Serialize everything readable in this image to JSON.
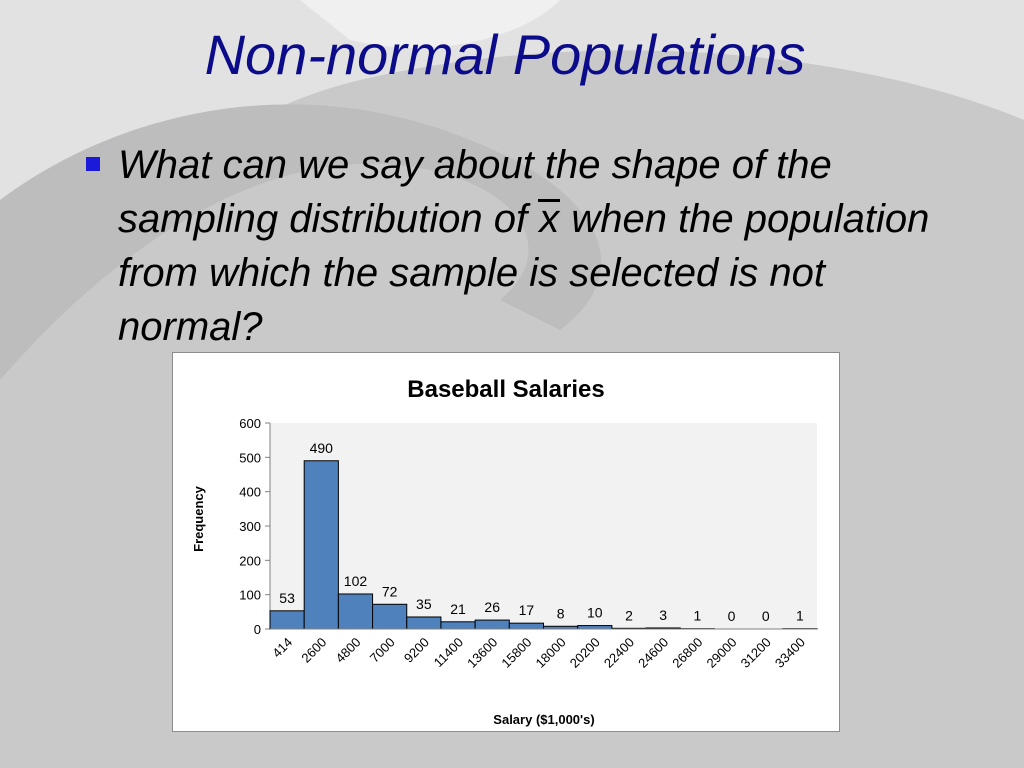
{
  "slide": {
    "title": "Non-normal Populations",
    "bullet_before": "What can we say about the shape of the sampling distribution of ",
    "bullet_symbol": "x",
    "bullet_after": " when the population from which the sample is selected is not normal?",
    "title_color": "#0c0c8a",
    "bullet_color": "#1a1ad8"
  },
  "chart_data": {
    "type": "bar",
    "title": "Baseball Salaries",
    "xlabel": "Salary ($1,000's)",
    "ylabel": "Frequency",
    "categories": [
      "414",
      "2600",
      "4800",
      "7000",
      "9200",
      "11400",
      "13600",
      "15800",
      "18000",
      "20200",
      "22400",
      "24600",
      "26800",
      "29000",
      "31200",
      "33400"
    ],
    "values": [
      53,
      490,
      102,
      72,
      35,
      21,
      26,
      17,
      8,
      10,
      2,
      3,
      1,
      0,
      0,
      1
    ],
    "ylim": [
      0,
      600
    ],
    "yticks": [
      0,
      100,
      200,
      300,
      400,
      500,
      600
    ],
    "grid": false,
    "legend": "none",
    "bar_color": "#4f81bd",
    "plot_bg": "#f2f2f2"
  }
}
